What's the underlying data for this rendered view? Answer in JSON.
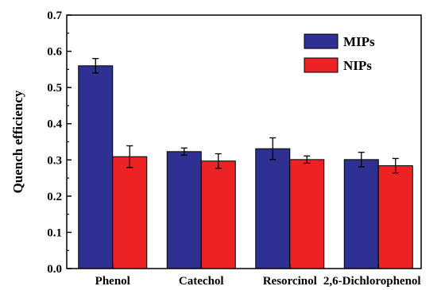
{
  "chart_data": {
    "type": "bar",
    "categories": [
      "Phenol",
      "Catechol",
      "Resorcinol",
      "2,6-Dichlorophenol"
    ],
    "series": [
      {
        "name": "MIPs",
        "values": [
          0.56,
          0.323,
          0.331,
          0.301
        ],
        "errors": [
          0.02,
          0.01,
          0.03,
          0.02
        ],
        "color": "#2e3192"
      },
      {
        "name": "NIPs",
        "values": [
          0.309,
          0.297,
          0.301,
          0.284
        ],
        "errors": [
          0.03,
          0.02,
          0.01,
          0.02
        ],
        "color": "#ed2224"
      }
    ],
    "title": "",
    "xlabel": "",
    "ylabel": "Quench efficiency",
    "ylim": [
      0.0,
      0.7
    ],
    "yticks": [
      "0.0",
      "0.1",
      "0.2",
      "0.3",
      "0.4",
      "0.5",
      "0.6",
      "0.7"
    ],
    "grid": false,
    "legend_position": "top-right"
  }
}
